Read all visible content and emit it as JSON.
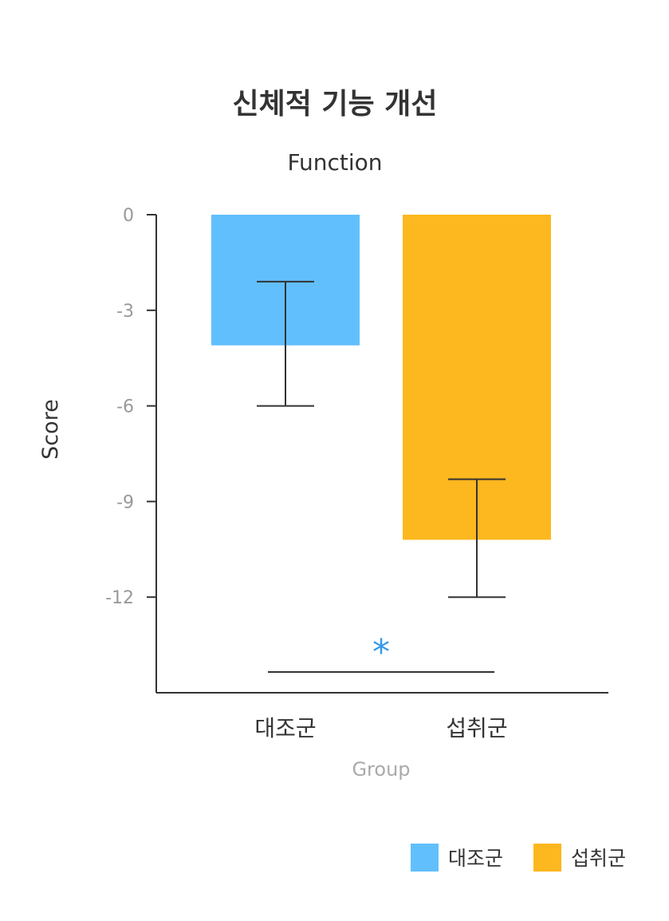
{
  "chart_data": {
    "type": "bar",
    "title": "신체적 기능 개선",
    "subtitle": "Function",
    "xlabel": "Group",
    "ylabel": "Score",
    "categories": [
      "대조군",
      "섭취군"
    ],
    "values": [
      -4.1,
      -10.2
    ],
    "error_bars": [
      {
        "low": -6.0,
        "high": -2.1
      },
      {
        "low": -12.0,
        "high": -8.3
      }
    ],
    "colors": [
      "#62bffd",
      "#fdb71f"
    ],
    "ylim": [
      -15,
      0
    ],
    "yticks": [
      0,
      -3,
      -6,
      -9,
      -12
    ],
    "grid": false,
    "legend": {
      "position": "bottom-right",
      "entries": [
        {
          "label": "대조군",
          "color": "#62bffd"
        },
        {
          "label": "섭취군",
          "color": "#fdb71f"
        }
      ]
    },
    "annotation": {
      "text": "*",
      "color": "#3399ee"
    }
  }
}
